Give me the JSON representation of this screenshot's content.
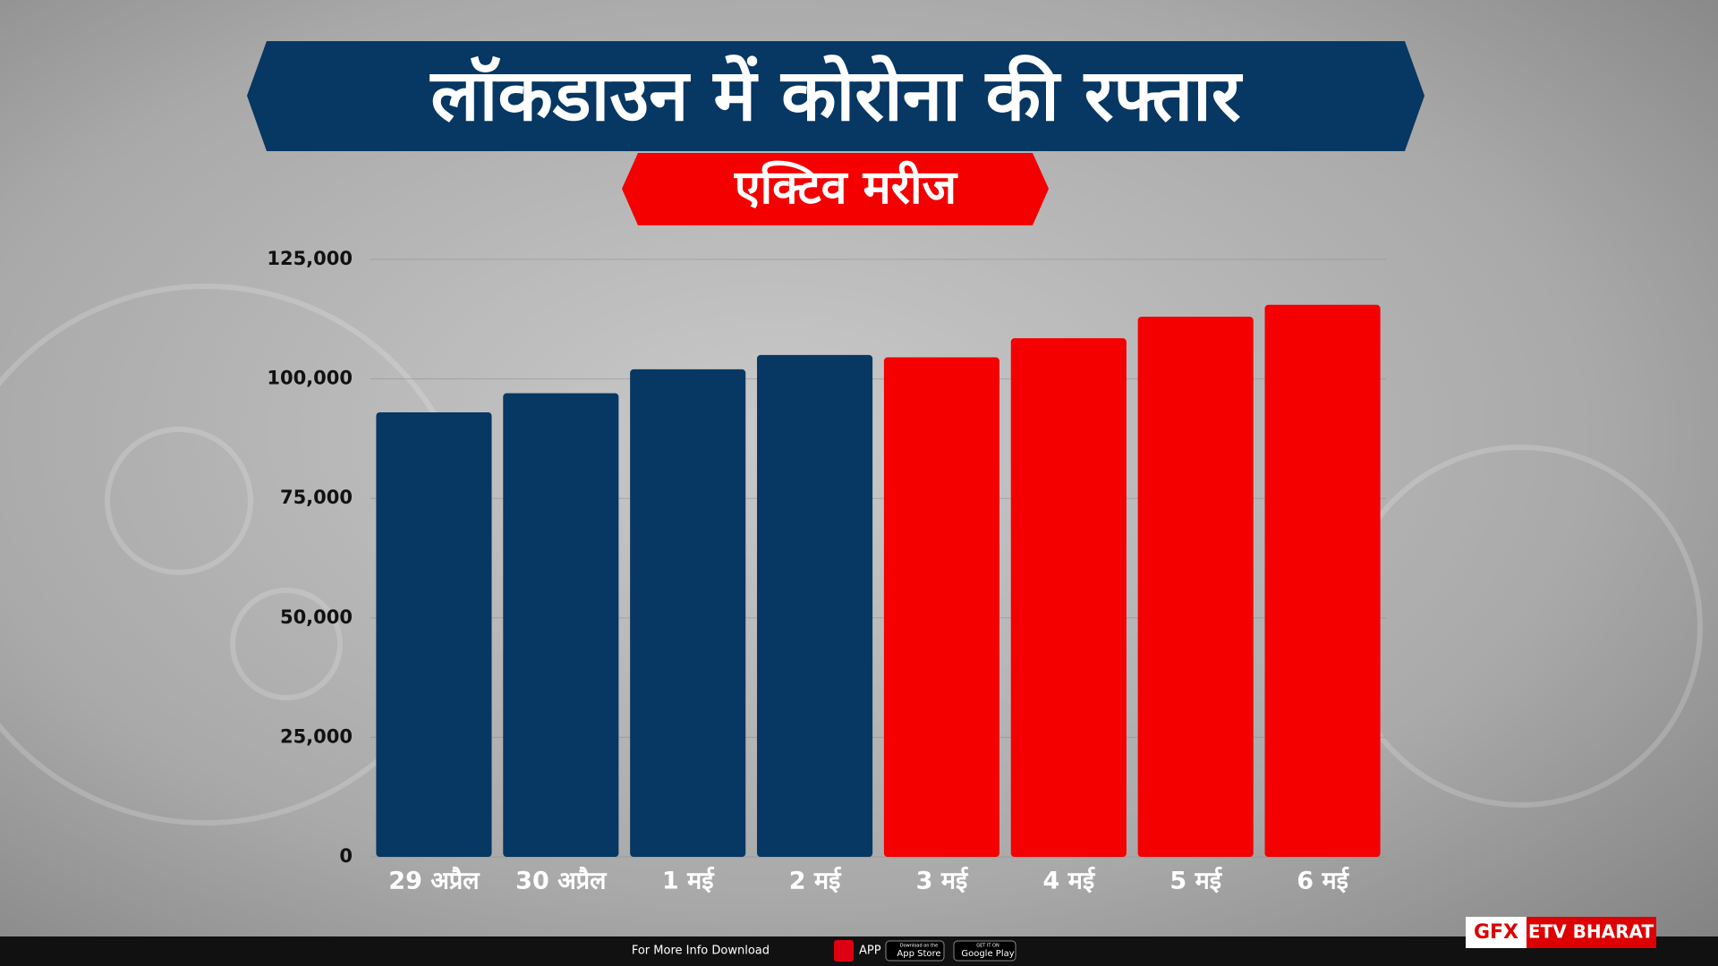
{
  "chart_data": {
    "type": "bar",
    "title": "लॉकडाउन में कोरोना की रफ्तार",
    "subtitle": "एक्टिव मरीज",
    "categories": [
      "29 अप्रैल",
      "30 अप्रैल",
      "1 मई",
      "2 मई",
      "3 मई",
      "4 मई",
      "5 मई",
      "6 मई"
    ],
    "values": [
      93000,
      97000,
      102000,
      105000,
      104500,
      108500,
      113000,
      115500
    ],
    "colors": [
      "#073763",
      "#073763",
      "#073763",
      "#073763",
      "#f40000",
      "#f40000",
      "#f40000",
      "#f40000"
    ],
    "ylim": [
      0,
      125000
    ],
    "yticks": [
      0,
      {
        "value": 25000,
        "label": "25,000"
      },
      {
        "value": 50000,
        "label": "50,000"
      },
      {
        "value": 75000,
        "label": "75,000"
      },
      {
        "value": 100000,
        "label": "100,000"
      },
      {
        "value": 125000,
        "label": "125,000"
      }
    ],
    "grid": true
  },
  "footer": {
    "download": "For More Info Download",
    "app": "APP",
    "app_store_top": "Download on the",
    "app_store": "App Store",
    "google_play_top": "GET IT ON",
    "google_play": "Google Play",
    "gfx": "GFX",
    "brand": "ETV BHARAT"
  }
}
